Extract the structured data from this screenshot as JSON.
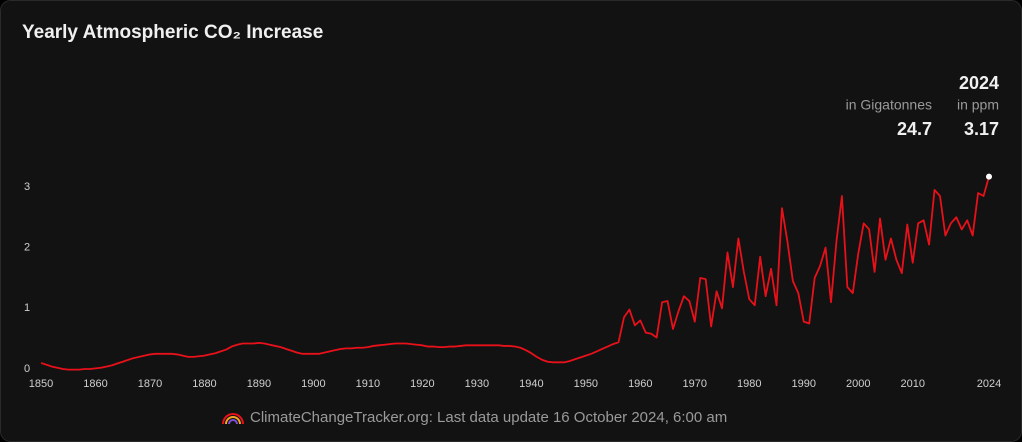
{
  "chart_data": {
    "type": "line",
    "title": "Yearly Atmospheric CO₂ Increase",
    "header": {
      "year": "2024",
      "unit1": "in Gigatonnes",
      "unit2": "in ppm",
      "value1": "24.7",
      "value2": "3.17"
    },
    "footer": "ClimateChangeTracker.org: Last data update 16 October 2024, 6:00 am",
    "xlim": [
      1850,
      2024
    ],
    "ylim": [
      0,
      3.3
    ],
    "xticks": [
      1850,
      1860,
      1870,
      1880,
      1890,
      1900,
      1910,
      1920,
      1930,
      1940,
      1950,
      1960,
      1970,
      1980,
      1990,
      2000,
      2010,
      2024
    ],
    "yticks": [
      0,
      1,
      2,
      3
    ],
    "series": [
      {
        "color": "#e8111a",
        "x": [
          1850,
          1851,
          1852,
          1853,
          1854,
          1855,
          1856,
          1857,
          1858,
          1859,
          1860,
          1861,
          1862,
          1863,
          1864,
          1865,
          1866,
          1867,
          1868,
          1869,
          1870,
          1871,
          1872,
          1873,
          1874,
          1875,
          1876,
          1877,
          1878,
          1879,
          1880,
          1881,
          1882,
          1883,
          1884,
          1885,
          1886,
          1887,
          1888,
          1889,
          1890,
          1891,
          1892,
          1893,
          1894,
          1895,
          1896,
          1897,
          1898,
          1899,
          1900,
          1901,
          1902,
          1903,
          1904,
          1905,
          1906,
          1907,
          1908,
          1909,
          1910,
          1911,
          1912,
          1913,
          1914,
          1915,
          1916,
          1917,
          1918,
          1919,
          1920,
          1921,
          1922,
          1923,
          1924,
          1925,
          1926,
          1927,
          1928,
          1929,
          1930,
          1931,
          1932,
          1933,
          1934,
          1935,
          1936,
          1937,
          1938,
          1939,
          1940,
          1941,
          1942,
          1943,
          1944,
          1945,
          1946,
          1947,
          1948,
          1949,
          1950,
          1951,
          1952,
          1953,
          1954,
          1955,
          1956,
          1957,
          1958,
          1959,
          1960,
          1961,
          1962,
          1963,
          1964,
          1965,
          1966,
          1967,
          1968,
          1969,
          1970,
          1971,
          1972,
          1973,
          1974,
          1975,
          1976,
          1977,
          1978,
          1979,
          1980,
          1981,
          1982,
          1983,
          1984,
          1985,
          1986,
          1987,
          1988,
          1989,
          1990,
          1991,
          1992,
          1993,
          1994,
          1995,
          1996,
          1997,
          1998,
          1999,
          2000,
          2001,
          2002,
          2003,
          2004,
          2005,
          2006,
          2007,
          2008,
          2009,
          2010,
          2011,
          2012,
          2013,
          2014,
          2015,
          2016,
          2017,
          2018,
          2019,
          2020,
          2021,
          2022,
          2023,
          2024
        ],
        "values": [
          0.1,
          0.07,
          0.04,
          0.02,
          0.0,
          -0.01,
          -0.01,
          -0.01,
          0.0,
          0.0,
          0.01,
          0.02,
          0.04,
          0.06,
          0.09,
          0.12,
          0.15,
          0.18,
          0.2,
          0.22,
          0.24,
          0.25,
          0.25,
          0.25,
          0.25,
          0.24,
          0.22,
          0.2,
          0.2,
          0.21,
          0.22,
          0.24,
          0.26,
          0.29,
          0.32,
          0.37,
          0.4,
          0.42,
          0.42,
          0.42,
          0.43,
          0.42,
          0.4,
          0.38,
          0.36,
          0.33,
          0.3,
          0.27,
          0.25,
          0.25,
          0.25,
          0.25,
          0.27,
          0.29,
          0.31,
          0.33,
          0.34,
          0.34,
          0.35,
          0.35,
          0.36,
          0.38,
          0.39,
          0.4,
          0.41,
          0.42,
          0.42,
          0.42,
          0.41,
          0.4,
          0.39,
          0.37,
          0.37,
          0.36,
          0.36,
          0.37,
          0.37,
          0.38,
          0.39,
          0.39,
          0.39,
          0.39,
          0.39,
          0.39,
          0.39,
          0.38,
          0.38,
          0.37,
          0.35,
          0.31,
          0.26,
          0.2,
          0.15,
          0.12,
          0.11,
          0.11,
          0.11,
          0.13,
          0.16,
          0.19,
          0.22,
          0.25,
          0.29,
          0.33,
          0.37,
          0.41,
          0.44,
          0.85,
          0.98,
          0.72,
          0.8,
          0.6,
          0.58,
          0.52,
          1.1,
          1.12,
          0.66,
          0.95,
          1.2,
          1.12,
          0.78,
          1.5,
          1.48,
          0.7,
          1.28,
          1.0,
          1.92,
          1.35,
          2.15,
          1.6,
          1.15,
          1.05,
          1.85,
          1.2,
          1.65,
          1.05,
          2.65,
          2.1,
          1.45,
          1.25,
          0.78,
          0.75,
          1.5,
          1.7,
          2.0,
          1.1,
          2.1,
          2.85,
          1.35,
          1.25,
          1.9,
          2.4,
          2.3,
          1.6,
          2.48,
          1.8,
          2.15,
          1.8,
          1.58,
          2.38,
          1.75,
          2.4,
          2.45,
          2.05,
          2.95,
          2.85,
          2.2,
          2.4,
          2.5,
          2.3,
          2.45,
          2.2,
          2.9,
          2.85,
          3.17
        ]
      }
    ]
  }
}
